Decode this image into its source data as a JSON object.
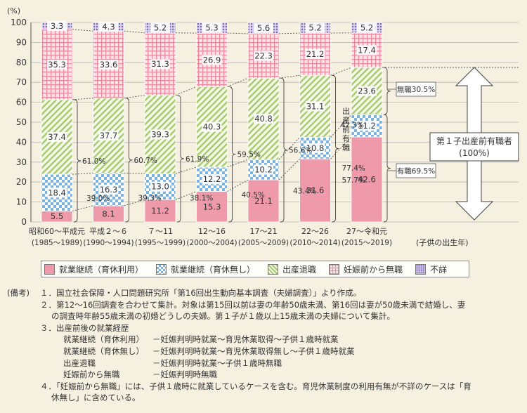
{
  "chart_data": {
    "type": "bar",
    "stacked": true,
    "y_unit": "(%)",
    "ylim": [
      0,
      100
    ],
    "y_ticks": [
      0,
      10,
      20,
      30,
      40,
      50,
      60,
      70,
      80,
      90,
      100
    ],
    "categories": [
      {
        "line1": "昭和60～平成元",
        "line2": "(1985～1989)"
      },
      {
        "line1": "平成２～６",
        "line2": "(1990～1994)"
      },
      {
        "line1": "７～11",
        "line2": "(1995～1999)"
      },
      {
        "line1": "12～16",
        "line2": "(2000～2004)"
      },
      {
        "line1": "17～21",
        "line2": "(2005～2009)"
      },
      {
        "line1": "22～26",
        "line2": "(2010～2014)"
      },
      {
        "line1": "27～令和元",
        "line2": "(2015～2019)"
      }
    ],
    "x_axis_label": "(子供の出生年)",
    "series": [
      {
        "name": "就業継続（育休利用）",
        "color": "#ee9aaa",
        "pattern": "solid",
        "values": [
          5.5,
          8.1,
          11.2,
          15.3,
          21.1,
          31.6,
          42.6
        ]
      },
      {
        "name": "就業継続（育休無し）",
        "color": "#7ab3dd",
        "pattern": "checker",
        "values": [
          18.4,
          16.3,
          13.0,
          12.2,
          10.2,
          10.8,
          11.2
        ]
      },
      {
        "name": "出産退職",
        "color": "#a8c870",
        "pattern": "diagonal",
        "values": [
          37.4,
          37.7,
          39.3,
          40.3,
          40.8,
          31.1,
          23.6
        ]
      },
      {
        "name": "妊娠前から無職",
        "color": "#e68ea0",
        "pattern": "grid",
        "values": [
          35.3,
          33.6,
          31.3,
          26.9,
          22.3,
          21.2,
          17.4
        ]
      },
      {
        "name": "不詳",
        "color": "#a08cc8",
        "pattern": "dots",
        "values": [
          3.3,
          4.3,
          5.2,
          5.3,
          5.6,
          5.2,
          5.2
        ]
      }
    ],
    "brace_employed_before": [
      "61.0%",
      "60.7%",
      "61.9%",
      "59.5%",
      "56.6%",
      "42.3%"
    ],
    "brace_continuation": [
      "39.0%",
      "39.3%",
      "38.1%",
      "40.5%",
      "43.4%",
      "77.4%\n57.7%"
    ],
    "vertical_label": "出産前有職",
    "right_annotations": {
      "unemployed": "無職30.5%",
      "employed": "有職69.5%",
      "box_line1": "第１子出産前有職者",
      "box_line2": "(100%)"
    }
  },
  "notes": {
    "header": "(備考)",
    "n1": "１．国立社会保障・人口問題研究所「第16回出生動向基本調査（夫婦調査）」より作成。",
    "n2a": "２．第12～16回調査を合わせて集計。対象は第15回以前は妻の年齢50歳未満、第16回は妻が50歳未満で結婚し、妻",
    "n2b": "の調査時年齢55歳未満の初婚どうしの夫婦。第１子が１歳以上15歳未満の夫婦について集計。",
    "n3": "３．出産前後の就業経歴",
    "routes": [
      {
        "label": "就業継続（育休利用）",
        "desc": "－妊娠判明時就業～育児休業取得～子供１歳時就業"
      },
      {
        "label": "就業継続（育休無し）",
        "desc": "－妊娠判明時就業～育児休業取得無し～子供１歳時就業"
      },
      {
        "label": "出産退職",
        "desc": "－妊娠判明時就業～子供１歳時無職"
      },
      {
        "label": "妊娠前から無職",
        "desc": "－妊娠判明時無職"
      }
    ],
    "n4a": "４．「妊娠前から無職」には、子供１歳時に就業しているケースを含む。育児休業制度の利用有無が不詳のケースは「育",
    "n4b": "休無し」に含めている。"
  }
}
